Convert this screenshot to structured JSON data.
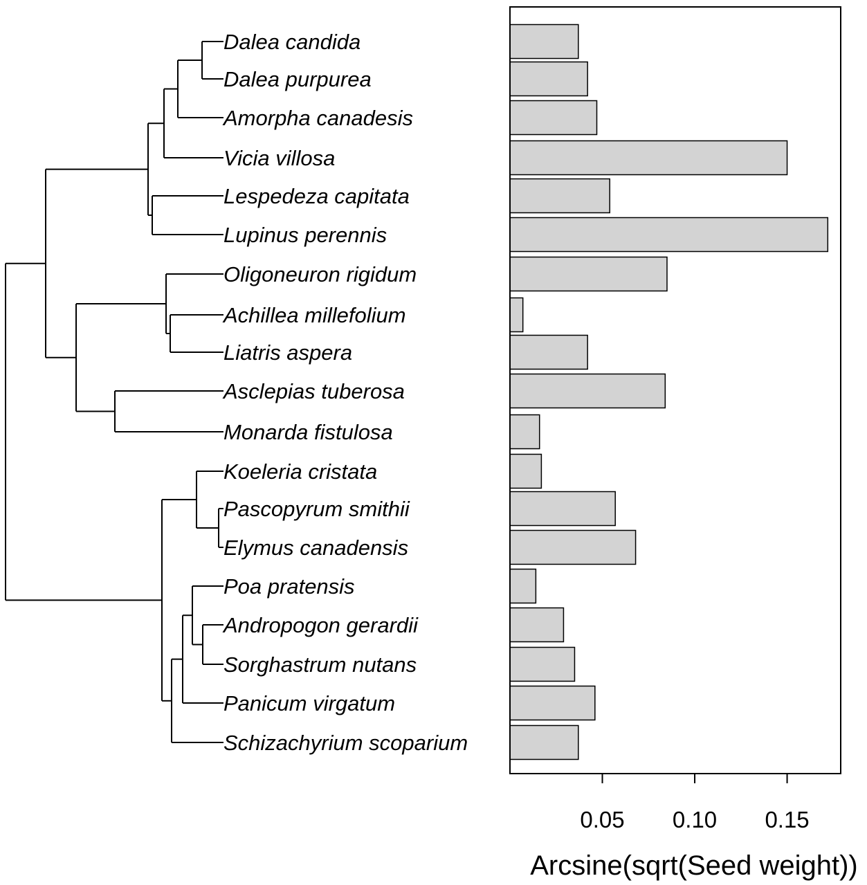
{
  "chart_data": {
    "type": "bar",
    "orientation": "horizontal",
    "categories": [
      "Dalea candida",
      "Dalea purpurea",
      "Amorpha canadesis",
      "Vicia villosa",
      "Lespedeza capitata",
      "Lupinus perennis",
      "Oligoneuron rigidum",
      "Achillea millefolium",
      "Liatris aspera",
      "Asclepias tuberosa",
      "Monarda fistulosa",
      "Koeleria cristata",
      "Pascopyrum smithii",
      "Elymus canadensis",
      "Poa pratensis",
      "Andropogon gerardii",
      "Sorghastrum nutans",
      "Panicum virgatum",
      "Schizachyrium scoparium"
    ],
    "values": [
      0.037,
      0.042,
      0.047,
      0.15,
      0.054,
      0.172,
      0.085,
      0.007,
      0.042,
      0.084,
      0.016,
      0.017,
      0.057,
      0.068,
      0.014,
      0.029,
      0.035,
      0.046,
      0.037
    ],
    "xlabel": "Arcsine(sqrt(Seed weight))",
    "xlim": [
      0,
      0.179
    ],
    "xticks": [
      "0.05",
      "0.10",
      "0.15"
    ],
    "tick_values": [
      0.05,
      0.1,
      0.15
    ],
    "grid": false,
    "bar_color": "#d3d3d3",
    "phylogeny": "((((((Dalea candida,Dalea purpurea),Amorpha canadesis),Vicia villosa),(Lespedeza capitata,Lupinus perennis)),((Oligoneuron rigidum,(Achillea millefolium,Liatris aspera)),(Asclepias tuberosa,Monarda fistulosa))),((Koeleria cristata,(Pascopyrum smithii,Elymus canadensis)),(((Poa pratensis,(Andropogon gerardii,Sorghastrum nutans)),Panicum virgatum),Schizachyrium scoparium)))"
  }
}
